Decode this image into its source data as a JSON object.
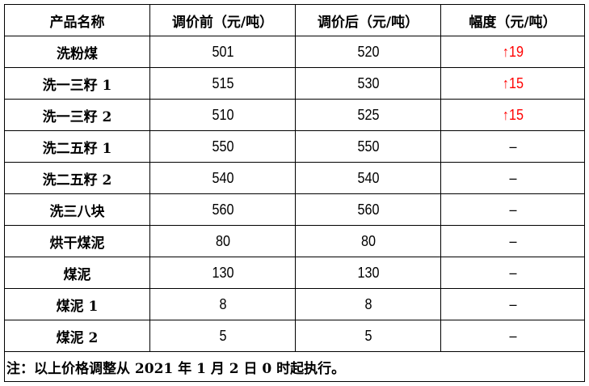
{
  "headers": [
    "产品名称",
    "调价前（元/吨）",
    "调价后（元/吨）",
    "幅度（元/吨）"
  ],
  "rows": [
    {
      "name": "洗粉煤",
      "before": "501",
      "after": "520",
      "change": "↑19"
    },
    {
      "name": "洗一三籽 1",
      "before": "515",
      "after": "530",
      "change": "↑15"
    },
    {
      "name": "洗一三籽 2",
      "before": "510",
      "after": "525",
      "change": "↑15"
    },
    {
      "name": "洗二五籽 1",
      "before": "550",
      "after": "550",
      "change": "–"
    },
    {
      "name": "洗二五籽 2",
      "before": "540",
      "after": "540",
      "change": "–"
    },
    {
      "name": "洗三八块",
      "before": "560",
      "after": "560",
      "change": "–"
    },
    {
      "name": "烘干煤泥",
      "before": "80",
      "after": "80",
      "change": "–"
    },
    {
      "name": "煤泥",
      "before": "130",
      "after": "130",
      "change": "–"
    },
    {
      "name": "煤泥 1",
      "before": "8",
      "after": "8",
      "change": "–"
    },
    {
      "name": "煤泥 2",
      "before": "5",
      "after": "5",
      "change": "–"
    }
  ],
  "note": "注：以上价格调整从 2021 年 1 月 2 日 0 时起执行。",
  "colors": {
    "increase": "#ff0000"
  }
}
